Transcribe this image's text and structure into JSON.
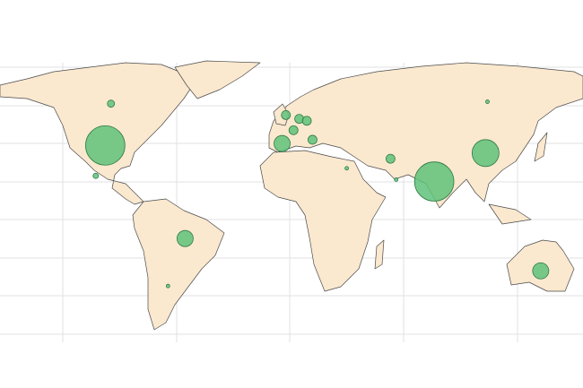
{
  "map": {
    "markers": [
      {
        "lon": -97,
        "lat": 39,
        "value": 480
      },
      {
        "lon": -94,
        "lat": 61,
        "value": 16
      },
      {
        "lon": -102,
        "lat": 23,
        "value": 9
      },
      {
        "lon": -55,
        "lat": -10,
        "value": 81
      },
      {
        "lon": -64,
        "lat": -35,
        "value": 4
      },
      {
        "lon": -2,
        "lat": 55,
        "value": 25
      },
      {
        "lon": -4,
        "lat": 40,
        "value": 81
      },
      {
        "lon": 2,
        "lat": 47,
        "value": 25
      },
      {
        "lon": 5,
        "lat": 53,
        "value": 25
      },
      {
        "lon": 9,
        "lat": 52,
        "value": 25
      },
      {
        "lon": 12,
        "lat": 42,
        "value": 25
      },
      {
        "lon": 30,
        "lat": 27,
        "value": 4
      },
      {
        "lon": 53,
        "lat": 32,
        "value": 25
      },
      {
        "lon": 56,
        "lat": 21,
        "value": 4
      },
      {
        "lon": 76,
        "lat": 20,
        "value": 480
      },
      {
        "lon": 103,
        "lat": 35,
        "value": 225
      },
      {
        "lon": 104,
        "lat": 62,
        "value": 4
      },
      {
        "lon": 132,
        "lat": -27,
        "value": 81
      }
    ]
  }
}
